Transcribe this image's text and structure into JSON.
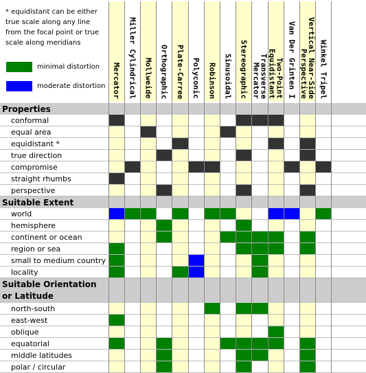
{
  "legend": {
    "note": "* equidistant can be either true scale along any line from the focal point or true scale along meridians",
    "items": [
      {
        "label": "minimal distortion",
        "color": "#008000"
      },
      {
        "label": "moderate distortion",
        "color": "#0000ff"
      }
    ]
  },
  "colors": {
    "column_shade": "#ffffcc",
    "cell_empty": "#ffffff",
    "property_yes": "#333333",
    "minimal": "#008000",
    "moderate": "#0000ff",
    "section": "#cccccc"
  },
  "projections": [
    {
      "label": "Mercator",
      "shaded": true
    },
    {
      "label": "Miller Cylindrical",
      "shaded": false
    },
    {
      "label": "Mollweide",
      "shaded": true
    },
    {
      "label": "Orthographic",
      "shaded": false
    },
    {
      "label": "Plate-Carree",
      "shaded": true
    },
    {
      "label": "Polyconic",
      "shaded": false
    },
    {
      "label": "Robinson",
      "shaded": true
    },
    {
      "label": "Sinusoidal",
      "shaded": false
    },
    {
      "label": "Stereographic",
      "shaded": true
    },
    {
      "label": "Transverse\nMercator",
      "shaded": false
    },
    {
      "label": "Two-Point\nEquidistant",
      "shaded": true
    },
    {
      "label": "Van Der Grinten I",
      "shaded": false
    },
    {
      "label": "Vertical Near-Side\nPerspective",
      "shaded": true
    },
    {
      "label": "Winkel Tripel",
      "shaded": false
    }
  ],
  "sections": [
    {
      "label": "Properties",
      "rows": [
        {
          "label": "conformal",
          "cells": [
            "X",
            "",
            "",
            "",
            "",
            "",
            "",
            "",
            "X",
            "X",
            "X",
            "",
            "",
            ""
          ]
        },
        {
          "label": "equal area",
          "cells": [
            "",
            "",
            "X",
            "",
            "",
            "",
            "",
            "X",
            "",
            "",
            "",
            "",
            "",
            ""
          ]
        },
        {
          "label": "equidistant *",
          "cells": [
            "",
            "",
            "",
            "",
            "X",
            "",
            "",
            "",
            "",
            "",
            "X",
            "",
            "X",
            ""
          ]
        },
        {
          "label": "true direction",
          "cells": [
            "",
            "",
            "",
            "X",
            "",
            "",
            "",
            "",
            "X",
            "",
            "",
            "",
            "X",
            ""
          ]
        },
        {
          "label": "compromise",
          "cells": [
            "",
            "X",
            "",
            "",
            "",
            "X",
            "X",
            "",
            "",
            "",
            "",
            "X",
            "",
            "X"
          ]
        },
        {
          "label": "straight rhumbs",
          "cells": [
            "X",
            "",
            "",
            "",
            "",
            "",
            "",
            "",
            "",
            "",
            "",
            "",
            "",
            ""
          ]
        },
        {
          "label": "perspective",
          "cells": [
            "",
            "",
            "",
            "X",
            "",
            "",
            "",
            "",
            "X",
            "",
            "",
            "",
            "X",
            ""
          ]
        }
      ]
    },
    {
      "label": "Suitable Extent",
      "rows": [
        {
          "label": "world",
          "cells": [
            "B",
            "G",
            "G",
            "",
            "G",
            "",
            "G",
            "G",
            "",
            "",
            "B",
            "B",
            "",
            "G"
          ]
        },
        {
          "label": "hemisphere",
          "cells": [
            "",
            "",
            "",
            "G",
            "",
            "",
            "",
            "",
            "G",
            "",
            "",
            "",
            "",
            ""
          ]
        },
        {
          "label": "continent or ocean",
          "cells": [
            "",
            "",
            "",
            "G",
            "",
            "",
            "",
            "G",
            "G",
            "G",
            "G",
            "",
            "G",
            ""
          ]
        },
        {
          "label": "region or sea",
          "cells": [
            "G",
            "",
            "",
            "",
            "",
            "",
            "",
            "",
            "G",
            "G",
            "G",
            "",
            "G",
            ""
          ]
        },
        {
          "label": "small to medium country",
          "cells": [
            "G",
            "",
            "",
            "",
            "",
            "B",
            "",
            "",
            "",
            "G",
            "",
            "",
            "",
            ""
          ]
        },
        {
          "label": "locality",
          "cells": [
            "G",
            "",
            "",
            "",
            "G",
            "B",
            "",
            "",
            "",
            "G",
            "",
            "",
            "",
            ""
          ]
        }
      ]
    },
    {
      "label": "Suitable Orientation\nor Latitude",
      "rows": [
        {
          "label": "north-south",
          "cells": [
            "",
            "",
            "",
            "",
            "",
            "",
            "G",
            "",
            "G",
            "G",
            "",
            "",
            "",
            ""
          ]
        },
        {
          "label": "east-west",
          "cells": [
            "G",
            "",
            "",
            "",
            "",
            "",
            "",
            "",
            "",
            "",
            "",
            "",
            "",
            ""
          ]
        },
        {
          "label": "oblique",
          "cells": [
            "",
            "",
            "",
            "",
            "",
            "",
            "",
            "",
            "",
            "",
            "G",
            "",
            "",
            ""
          ]
        },
        {
          "label": "equatorial",
          "cells": [
            "G",
            "",
            "",
            "G",
            "",
            "",
            "",
            "G",
            "G",
            "G",
            "G",
            "",
            "G",
            ""
          ]
        },
        {
          "label": "middle latitudes",
          "cells": [
            "",
            "",
            "",
            "G",
            "",
            "",
            "",
            "",
            "G",
            "G",
            "",
            "",
            "G",
            ""
          ]
        },
        {
          "label": "polar / circular",
          "cells": [
            "",
            "",
            "",
            "G",
            "",
            "",
            "",
            "",
            "G",
            "",
            "",
            "",
            "G",
            ""
          ]
        }
      ]
    }
  ]
}
